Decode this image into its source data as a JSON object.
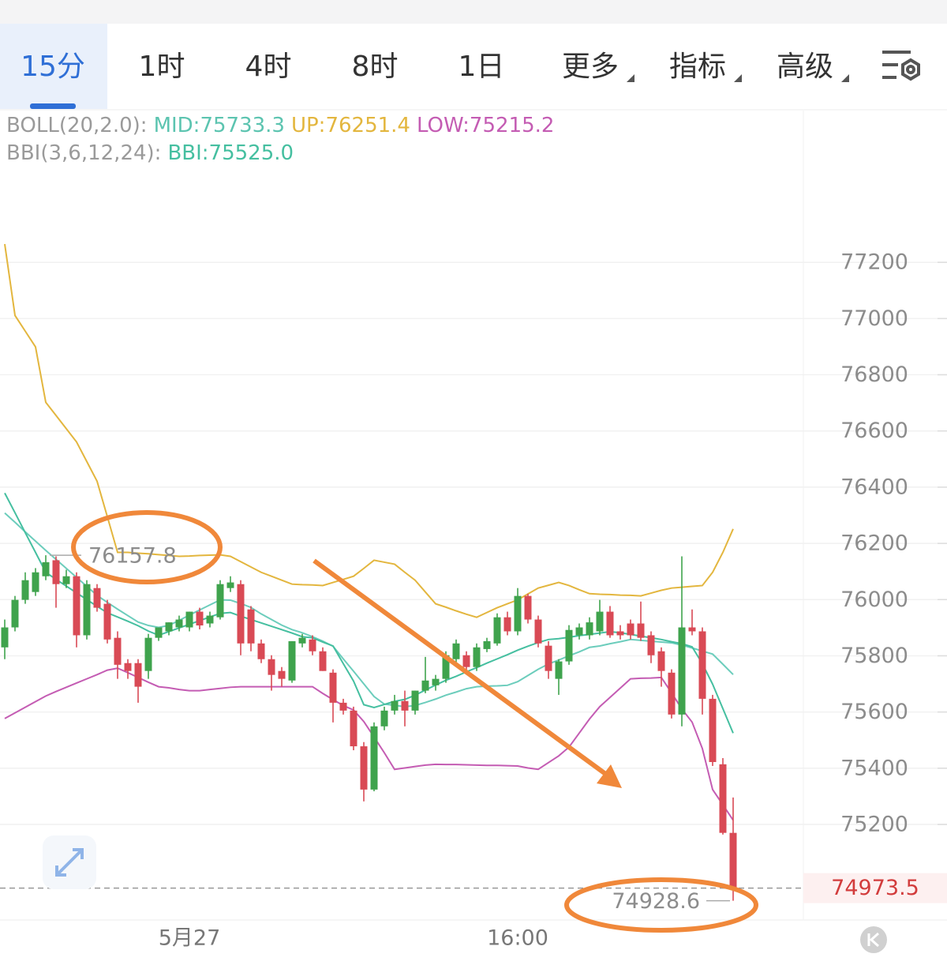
{
  "tabs": [
    "15分",
    "1时",
    "4时",
    "8时",
    "1日",
    "更多",
    "指标",
    "高级"
  ],
  "chart_data": {
    "type": "candlestick",
    "indicators": [
      [
        {
          "text": "BOLL(20,2.0):",
          "color": "#9a9a9a"
        },
        {
          "text": "MID:75733.3",
          "color": "#5cc4b0"
        },
        {
          "text": "UP:76251.4",
          "color": "#e3b63e"
        },
        {
          "text": "LOW:75215.2",
          "color": "#c45cb3"
        }
      ],
      [
        {
          "text": "BBI(3,6,12,24):",
          "color": "#9a9a9a"
        },
        {
          "text": "BBI:75525.0",
          "color": "#45bfa0"
        }
      ]
    ],
    "categories": [
      null,
      null,
      null,
      null,
      null,
      null,
      null,
      null,
      null,
      null,
      null,
      null,
      null,
      null,
      null,
      null,
      null,
      null,
      "5月27",
      null,
      null,
      null,
      null,
      null,
      null,
      null,
      null,
      null,
      null,
      null,
      null,
      null,
      null,
      null,
      null,
      null,
      null,
      null,
      null,
      null,
      null,
      null,
      null,
      null,
      null,
      null,
      null,
      null,
      null,
      null,
      "16:00",
      null,
      null,
      null,
      null,
      null,
      null,
      null,
      null,
      null,
      null,
      null,
      null,
      null,
      null,
      null,
      null,
      null,
      null,
      null,
      null,
      null
    ],
    "open": [
      75830,
      75901,
      75999,
      76027,
      76083,
      76140,
      76055,
      76083,
      75873,
      76041,
      75985,
      75864,
      75774,
      75774,
      75746,
      75864,
      75887,
      75901,
      75901,
      75957,
      75915,
      75937,
      76041,
      76055,
      75965,
      75844,
      75788,
      75746,
      75712,
      75844,
      75858,
      75816,
      75740,
      75633,
      75605,
      75478,
      75324,
      75549,
      75605,
      75639,
      75605,
      75676,
      75695,
      75718,
      75788,
      75802,
      75760,
      75824,
      75844,
      75937,
      75887,
      76013,
      75929,
      75836,
      75718,
      75780,
      75873,
      75873,
      75887,
      75957,
      75887,
      75915,
      75915,
      75873,
      75816,
      75740,
      75591,
      75901,
      75887,
      75647,
      75414,
      75170
    ],
    "high": [
      75929,
      76013,
      76097,
      76112,
      76157.8,
      76154,
      76106,
      76097,
      76069,
      76055,
      75999,
      75887,
      75788,
      75788,
      75878,
      75901,
      75919,
      75943,
      75957,
      75971,
      75957,
      76069,
      76083,
      76069,
      75977,
      75858,
      75802,
      75760,
      75852,
      75878,
      75873,
      75830,
      75752,
      75647,
      75619,
      75493,
      75563,
      75619,
      75661,
      75676,
      75676,
      75796,
      75732,
      75816,
      75858,
      75816,
      75844,
      75864,
      75951,
      75957,
      76041,
      76021,
      75943,
      75852,
      75788,
      75909,
      75915,
      75937,
      75999,
      75977,
      75909,
      75929,
      75993,
      75887,
      75830,
      75752,
      76154,
      75965,
      75901,
      75661,
      75436,
      75296
    ],
    "low": [
      75788,
      75887,
      75985,
      76013,
      76069,
      75971,
      76041,
      75830,
      75858,
      75957,
      75844,
      75718,
      75718,
      75633,
      75718,
      75853,
      75873,
      75887,
      75887,
      75894,
      75901,
      75929,
      76027,
      75802,
      75816,
      75774,
      75676,
      75690,
      75704,
      75830,
      75802,
      75746,
      75563,
      75591,
      75464,
      75282,
      75318,
      75535,
      75591,
      75549,
      75591,
      75667,
      75676,
      75704,
      75774,
      75746,
      75746,
      75813,
      75836,
      75873,
      75873,
      75915,
      75830,
      75718,
      75661,
      75768,
      75858,
      75858,
      75873,
      75864,
      75858,
      75858,
      75853,
      75774,
      75690,
      75577,
      75549,
      75873,
      75591,
      75408,
      75164,
      74928.6
    ],
    "close": [
      75901,
      75999,
      76069,
      76097,
      76133,
      76055,
      76083,
      75873,
      76055,
      75971,
      75858,
      75768,
      75746,
      75690,
      75864,
      75901,
      75919,
      75929,
      75957,
      75908,
      75943,
      76055,
      76061,
      75844,
      75844,
      75788,
      75732,
      75718,
      75852,
      75864,
      75816,
      75746,
      75633,
      75605,
      75478,
      75324,
      75549,
      75605,
      75639,
      75605,
      75676,
      75712,
      75718,
      75802,
      75844,
      75760,
      75830,
      75852,
      75937,
      75887,
      76013,
      75929,
      75844,
      75746,
      75780,
      75892,
      75901,
      75919,
      75957,
      75873,
      75873,
      75873,
      75864,
      75802,
      75746,
      75591,
      75901,
      75887,
      75647,
      75422,
      75170,
      74973.5
    ],
    "up_color": "#3fa34d",
    "down_color": "#d94a55",
    "lines": [
      {
        "color": "#e3b63e",
        "values": [
          77265,
          77011,
          76955,
          76899,
          76702,
          76655,
          76608,
          76561,
          76491,
          76421,
          76295,
          76168,
          76168,
          76165,
          76163,
          76160,
          76157,
          76154,
          76155,
          76157,
          76158,
          76159,
          76154,
          76135,
          76116,
          76097,
          76083,
          76069,
          76055,
          76053,
          76052,
          76050,
          76061,
          76072,
          76083,
          76111,
          76140,
          76133,
          76126,
          76097,
          76069,
          76027,
          75985,
          75973,
          75960,
          75948,
          75937,
          75954,
          75971,
          75985,
          75999,
          76020,
          76041,
          76051,
          76061,
          76050,
          76035,
          76021,
          76019,
          76018,
          76016,
          76015,
          76013,
          76023,
          76033,
          76041,
          76044,
          76047,
          76050,
          76097,
          76168,
          76251.4
        ]
      },
      {
        "color": "#6ccdbc",
        "values": [
          76308,
          76275,
          76241,
          76208,
          76175,
          76143,
          76111,
          76079,
          76047,
          76015,
          75990,
          75966,
          75943,
          75920,
          75908,
          75901,
          75908,
          75926,
          75945,
          75963,
          75981,
          75999,
          75998,
          75986,
          75972,
          75949,
          75929,
          75909,
          75893,
          75882,
          75868,
          75852,
          75834,
          75789,
          75745,
          75700,
          75655,
          75628,
          75624,
          75619,
          75623,
          75634,
          75646,
          75660,
          75671,
          75683,
          75690,
          75692,
          75693,
          75695,
          75708,
          75730,
          75752,
          75771,
          75785,
          75800,
          75814,
          75830,
          75835,
          75843,
          75850,
          75858,
          75855,
          75852,
          75849,
          75846,
          75838,
          75828,
          75817,
          75806,
          75770,
          75733.3
        ]
      },
      {
        "color": "#45bfa0",
        "values": [
          76379,
          76309,
          76238,
          76168,
          76097,
          76072,
          76048,
          76024,
          76000,
          75976,
          75953,
          75938,
          75923,
          75907,
          75888,
          75873,
          75886,
          75899,
          75912,
          75925,
          75938,
          75951,
          75954,
          75941,
          75929,
          75917,
          75905,
          75893,
          75881,
          75868,
          75864,
          75849,
          75835,
          75772,
          75710,
          75626,
          75616,
          75627,
          75638,
          75645,
          75660,
          75678,
          75696,
          75713,
          75727,
          75743,
          75758,
          75774,
          75789,
          75804,
          75820,
          75834,
          75847,
          75858,
          75861,
          75866,
          75872,
          75876,
          75881,
          75886,
          75882,
          75876,
          75870,
          75864,
          75858,
          75850,
          75843,
          75832,
          75772,
          75699,
          75612,
          75525.0
        ]
      },
      {
        "color": "#c45cb3",
        "values": [
          75577,
          75597,
          75617,
          75637,
          75657,
          75673,
          75688,
          75703,
          75718,
          75733,
          75749,
          75756,
          75740,
          75723,
          75706,
          75690,
          75686,
          75680,
          75676,
          75676,
          75680,
          75684,
          75688,
          75690,
          75690,
          75690,
          75690,
          75690,
          75690,
          75690,
          75690,
          75666,
          75644,
          75623,
          75607,
          75566,
          75511,
          75455,
          75396,
          75401,
          75406,
          75411,
          75414,
          75413,
          75413,
          75412,
          75411,
          75410,
          75410,
          75409,
          75408,
          75401,
          75396,
          75420,
          75444,
          75475,
          75525,
          75575,
          75619,
          75652,
          75685,
          75718,
          75720,
          75721,
          75723,
          75668,
          75611,
          75564,
          75470,
          75324,
          75270,
          75215.2
        ]
      }
    ],
    "ylim": [
      74860,
      77740
    ],
    "yticks": [
      75200,
      75400,
      75600,
      75800,
      76000,
      76200,
      76400,
      76600,
      76800,
      77000,
      77200
    ],
    "grid": true
  }
}
